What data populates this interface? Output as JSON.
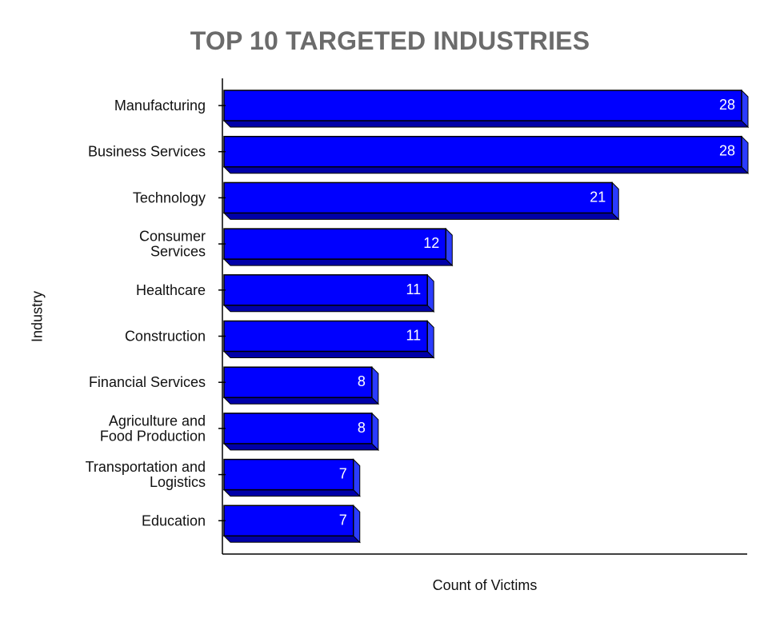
{
  "chart_data": {
    "type": "bar",
    "orientation": "horizontal",
    "title": "TOP 10 TARGETED INDUSTRIES",
    "xlabel": "Count of Victims",
    "ylabel": "Industry",
    "categories": [
      [
        "Manufacturing"
      ],
      [
        "Business Services"
      ],
      [
        "Technology"
      ],
      [
        "Consumer",
        "Services"
      ],
      [
        "Healthcare"
      ],
      [
        "Construction"
      ],
      [
        "Financial Services"
      ],
      [
        "Agriculture and",
        "Food Production"
      ],
      [
        "Transportation and",
        "Logistics"
      ],
      [
        "Education"
      ]
    ],
    "values": [
      28,
      28,
      21,
      12,
      11,
      11,
      8,
      8,
      7,
      7
    ],
    "xlim": [
      0,
      28
    ],
    "grid": false,
    "legend": "none",
    "colors": {
      "bar_face": "#0000ff",
      "bar_bottom": "#0000a8",
      "bar_side": "#2b3cff",
      "outline": "#000000",
      "axis": "#000000",
      "title": "#6b6b6b"
    }
  }
}
